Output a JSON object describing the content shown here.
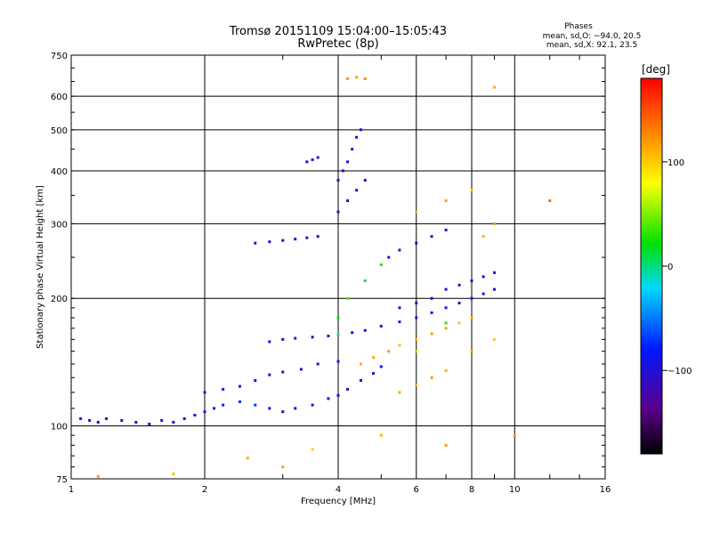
{
  "chart_data": {
    "type": "scatter",
    "title": "Tromsø 20151109 15:04:00–15:05:43",
    "subtitle": "RwPretec (8p)",
    "xlabel": "Frequency [MHz]",
    "ylabel": "Stationary phase Virtual Height [km]",
    "x_scale": "log",
    "y_scale": "log",
    "xlim": [
      1,
      16
    ],
    "ylim": [
      75,
      750
    ],
    "x_ticks": [
      "1",
      "2",
      "4",
      "6",
      "8",
      "10",
      "16"
    ],
    "y_ticks": [
      "75",
      "100",
      "200",
      "300",
      "400",
      "500",
      "600",
      "750"
    ],
    "grid": true,
    "stats": {
      "title": "Phases",
      "line_o": "mean, sd,O: −94.0, 20.5",
      "line_x": "mean, sd,X:  92.1, 23.5"
    },
    "colorbar": {
      "label": "[deg]",
      "ticks": [
        "100",
        "0",
        "−100"
      ],
      "colormap": "rainbow"
    },
    "series": [
      {
        "description_points": [
          [
            1.05,
            104,
            -100
          ],
          [
            1.1,
            103,
            -110
          ],
          [
            1.15,
            102,
            -95
          ],
          [
            1.2,
            104,
            -100
          ],
          [
            1.3,
            103,
            -105
          ],
          [
            1.4,
            102,
            -100
          ],
          [
            1.5,
            101,
            -98
          ],
          [
            1.6,
            103,
            -102
          ],
          [
            1.7,
            102,
            -100
          ],
          [
            1.8,
            104,
            -95
          ],
          [
            1.9,
            106,
            -100
          ],
          [
            2.0,
            108,
            -90
          ],
          [
            2.1,
            110,
            -85
          ],
          [
            2.2,
            112,
            -80
          ],
          [
            2.4,
            114,
            -75
          ],
          [
            2.6,
            112,
            -70
          ],
          [
            2.8,
            110,
            -95
          ],
          [
            3.0,
            108,
            -100
          ],
          [
            3.2,
            110,
            -95
          ],
          [
            3.5,
            112,
            -90
          ],
          [
            3.8,
            116,
            -85
          ],
          [
            4.0,
            118,
            -100
          ],
          [
            4.2,
            122,
            -95
          ],
          [
            4.5,
            128,
            -90
          ],
          [
            4.8,
            133,
            -100
          ],
          [
            5.0,
            138,
            -80
          ],
          [
            2.0,
            120,
            -100
          ],
          [
            2.2,
            122,
            -95
          ],
          [
            2.4,
            124,
            -100
          ],
          [
            2.6,
            128,
            -90
          ],
          [
            2.8,
            132,
            -85
          ],
          [
            3.0,
            134,
            -100
          ],
          [
            3.3,
            136,
            -95
          ],
          [
            3.6,
            140,
            -100
          ],
          [
            4.0,
            142,
            -90
          ],
          [
            2.8,
            158,
            -100
          ],
          [
            3.0,
            160,
            -95
          ],
          [
            3.2,
            161,
            -100
          ],
          [
            3.5,
            162,
            -100
          ],
          [
            3.8,
            163,
            -95
          ],
          [
            4.0,
            164,
            -10
          ],
          [
            4.3,
            166,
            -100
          ],
          [
            4.6,
            168,
            -95
          ],
          [
            5.0,
            172,
            -100
          ],
          [
            5.5,
            176,
            -90
          ],
          [
            6.0,
            180,
            -85
          ],
          [
            6.5,
            185,
            -100
          ],
          [
            7.0,
            190,
            -95
          ],
          [
            7.5,
            195,
            -100
          ],
          [
            8.0,
            200,
            -90
          ],
          [
            8.5,
            205,
            -95
          ],
          [
            9.0,
            210,
            -100
          ],
          [
            2.6,
            270,
            -100
          ],
          [
            2.8,
            272,
            -95
          ],
          [
            3.0,
            274,
            -100
          ],
          [
            3.2,
            276,
            -95
          ],
          [
            3.4,
            278,
            -100
          ],
          [
            3.6,
            280,
            -95
          ],
          [
            3.4,
            420,
            -100
          ],
          [
            3.5,
            425,
            -95
          ],
          [
            3.6,
            430,
            -100
          ],
          [
            4.0,
            380,
            -100
          ],
          [
            4.1,
            400,
            -95
          ],
          [
            4.2,
            420,
            -100
          ],
          [
            4.3,
            450,
            -90
          ],
          [
            4.4,
            480,
            -100
          ],
          [
            4.5,
            500,
            -95
          ],
          [
            4.0,
            320,
            -100
          ],
          [
            4.2,
            340,
            -85
          ],
          [
            4.4,
            360,
            -100
          ],
          [
            4.6,
            380,
            -95
          ],
          [
            5.2,
            250,
            -100
          ],
          [
            5.5,
            260,
            -95
          ],
          [
            6.0,
            270,
            -100
          ],
          [
            6.5,
            280,
            -90
          ],
          [
            7.0,
            290,
            -100
          ],
          [
            5.5,
            190,
            -100
          ],
          [
            6.0,
            195,
            -95
          ],
          [
            6.5,
            200,
            -100
          ],
          [
            7.0,
            210,
            -95
          ],
          [
            7.5,
            215,
            -100
          ],
          [
            8.0,
            220,
            -95
          ],
          [
            8.5,
            225,
            -100
          ],
          [
            9.0,
            230,
            -90
          ]
        ],
        "description_colors": "phase in degrees"
      },
      {
        "description_points": [
          [
            4.2,
            660,
            120
          ],
          [
            4.4,
            665,
            115
          ],
          [
            4.6,
            660,
            125
          ],
          [
            4.5,
            140,
            110
          ],
          [
            4.8,
            145,
            115
          ],
          [
            5.2,
            150,
            120
          ],
          [
            5.5,
            155,
            105
          ],
          [
            6.0,
            160,
            110
          ],
          [
            6.5,
            165,
            120
          ],
          [
            7.0,
            170,
            115
          ],
          [
            7.5,
            175,
            100
          ],
          [
            8.0,
            180,
            110
          ],
          [
            5.5,
            120,
            115
          ],
          [
            6.0,
            125,
            105
          ],
          [
            6.5,
            130,
            120
          ],
          [
            7.0,
            135,
            110
          ],
          [
            8.0,
            150,
            115
          ],
          [
            9.0,
            160,
            100
          ],
          [
            8.5,
            280,
            110
          ],
          [
            9.0,
            300,
            120
          ],
          [
            12.0,
            340,
            140
          ],
          [
            9.0,
            630,
            110
          ],
          [
            1.15,
            76,
            120
          ],
          [
            1.7,
            77,
            105
          ],
          [
            2.5,
            84,
            110
          ],
          [
            3.0,
            80,
            115
          ],
          [
            3.5,
            88,
            100
          ],
          [
            5.0,
            95,
            110
          ],
          [
            7.0,
            90,
            120
          ],
          [
            10.0,
            95,
            115
          ],
          [
            6.0,
            320,
            105
          ],
          [
            7.0,
            340,
            115
          ],
          [
            8.0,
            360,
            100
          ],
          [
            4.0,
            180,
            20
          ],
          [
            4.2,
            200,
            40
          ],
          [
            4.6,
            220,
            10
          ],
          [
            5.0,
            240,
            30
          ],
          [
            6.0,
            150,
            60
          ],
          [
            7.0,
            175,
            30
          ]
        ],
        "description_colors": "phase in degrees"
      }
    ]
  }
}
